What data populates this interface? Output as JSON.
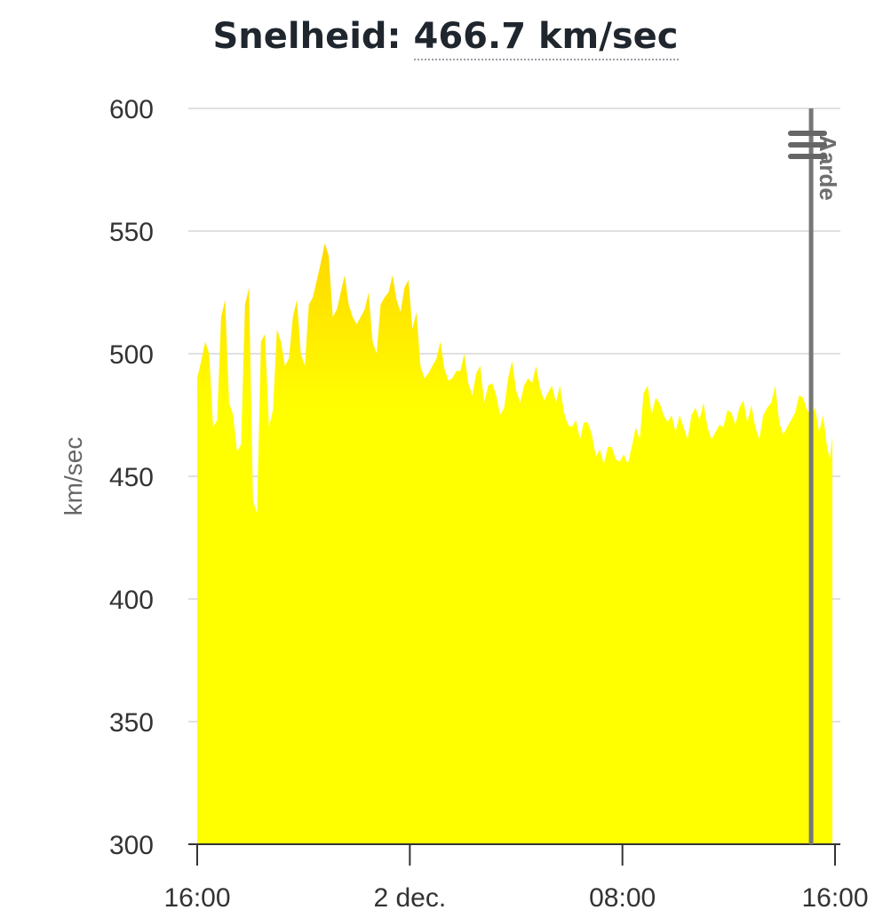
{
  "header": {
    "title_prefix": "Snelheid:",
    "title_value": "466.7 km/sec"
  },
  "menu": {
    "icon": "hamburger-menu-icon"
  },
  "chart_data": {
    "type": "area",
    "title": "Snelheid: 466.7 km/sec",
    "ylabel": "km/sec",
    "xlabel": "",
    "ylim": [
      300,
      600
    ],
    "yticks": [
      300,
      350,
      400,
      450,
      500,
      550,
      600
    ],
    "xlim": [
      0,
      24
    ],
    "xticks": [
      {
        "x": 0,
        "label": "16:00"
      },
      {
        "x": 8,
        "label": "2 dec."
      },
      {
        "x": 16,
        "label": "08:00"
      },
      {
        "x": 24,
        "label": "16:00"
      }
    ],
    "grid": true,
    "fill_colors": [
      "#ffd700",
      "#ffff00"
    ],
    "series": [
      {
        "x": [
          0,
          0.3,
          0.6,
          0.9,
          1.2,
          1.5,
          1.8,
          2.1,
          2.4,
          2.7,
          3.0,
          3.3,
          3.6,
          3.9,
          4.2,
          4.5,
          4.8,
          5.1,
          5.4,
          5.7,
          6.0,
          6.3,
          6.6,
          6.9,
          7.2,
          7.5,
          7.8,
          8.1,
          8.4,
          8.7,
          9.0,
          9.3,
          9.6,
          9.9,
          10.2,
          10.5,
          10.8,
          11.1,
          11.4,
          11.7,
          12.0,
          12.3,
          12.6,
          12.9,
          13.2,
          13.5,
          13.8,
          14.1,
          14.4,
          14.7,
          15.0,
          15.3,
          15.6,
          15.9,
          16.2,
          16.5,
          16.8,
          17.1,
          17.4,
          17.7,
          18.0,
          18.3,
          18.6,
          18.9,
          19.2,
          19.5,
          19.8,
          20.1,
          20.4,
          20.7,
          21.0,
          21.3,
          21.6,
          21.9,
          22.2,
          22.5,
          22.8,
          23.1,
          23.4,
          23.7,
          23.9
        ],
        "y": [
          490,
          505,
          470,
          515,
          480,
          460,
          520,
          440,
          505,
          470,
          510,
          495,
          515,
          500,
          520,
          530,
          545,
          515,
          525,
          520,
          512,
          518,
          505,
          520,
          525,
          522,
          527,
          510,
          495,
          492,
          498,
          494,
          490,
          493,
          488,
          492,
          480,
          488,
          475,
          490,
          485,
          487,
          488,
          486,
          484,
          480,
          476,
          470,
          465,
          472,
          458,
          455,
          462,
          456,
          455,
          470,
          484,
          475,
          480,
          472,
          468,
          470,
          475,
          473,
          470,
          468,
          470,
          476,
          478,
          472,
          470,
          475,
          480,
          472,
          470,
          476,
          482,
          475,
          468,
          462,
          466
        ]
      }
    ],
    "annotations": [
      {
        "type": "vertical-line",
        "x": 23.1,
        "label": "Aarde"
      }
    ]
  }
}
